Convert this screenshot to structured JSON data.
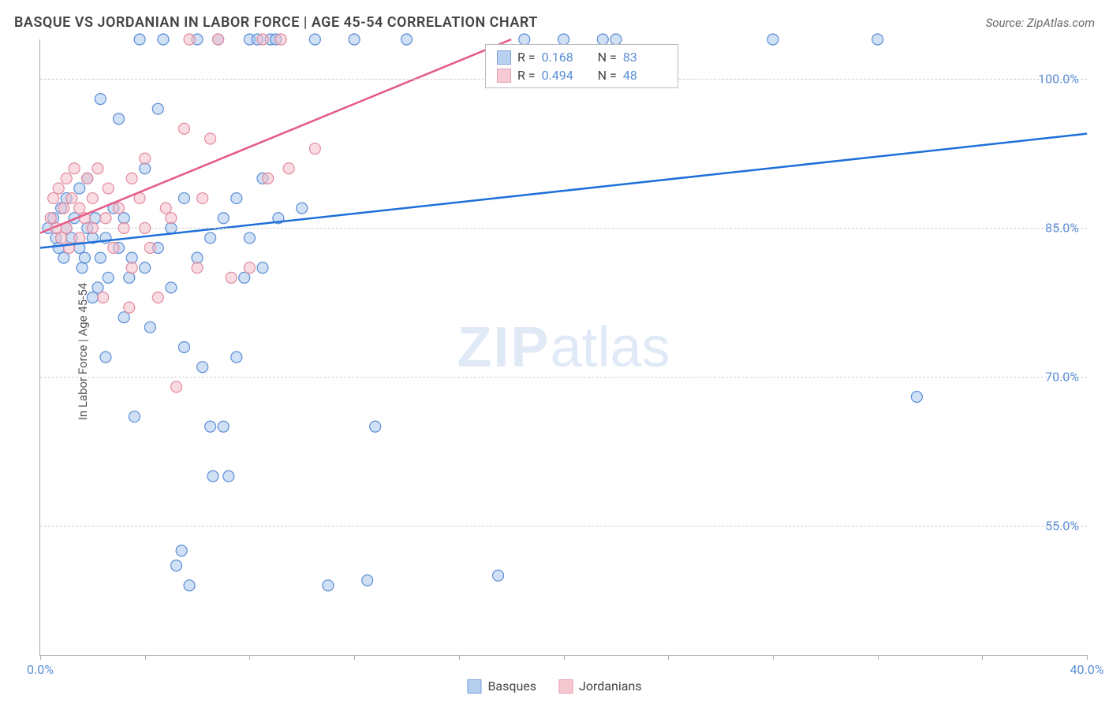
{
  "title": "BASQUE VS JORDANIAN IN LABOR FORCE | AGE 45-54 CORRELATION CHART",
  "source_label": "Source:",
  "source_name": "ZipAtlas.com",
  "ylabel": "In Labor Force | Age 45-54",
  "watermark_bold": "ZIP",
  "watermark_rest": "atlas",
  "chart": {
    "type": "scatter",
    "xlim": [
      0,
      40
    ],
    "ylim": [
      42,
      104
    ],
    "xticks": [
      0,
      4,
      8,
      12,
      16,
      20,
      24,
      28,
      32,
      36,
      40
    ],
    "xtick_labels": {
      "0": "0.0%",
      "40": "40.0%"
    },
    "yticks": [
      55,
      70,
      85,
      100
    ],
    "ytick_labels": {
      "55": "55.0%",
      "70": "70.0%",
      "85": "85.0%",
      "100": "100.0%"
    },
    "marker_radius": 7,
    "marker_stroke_width": 1.2,
    "trend_line_width": 2.5,
    "background": "#ffffff",
    "grid_color": "#d0d0d0",
    "axis_color": "#aaaaaa",
    "tick_label_color": "#5b8dd6",
    "series": [
      {
        "name": "Basques",
        "fill": "#a9c7ec",
        "stroke": "#5b8dd6",
        "fill_opacity": 0.55,
        "r": "0.168",
        "n": "83",
        "trend": {
          "x1": 0,
          "y1": 83.0,
          "x2": 40,
          "y2": 94.5,
          "color": "#1e6fd9"
        },
        "points": [
          [
            0.3,
            85
          ],
          [
            0.5,
            86
          ],
          [
            0.6,
            84
          ],
          [
            0.7,
            83
          ],
          [
            0.8,
            87
          ],
          [
            0.9,
            82
          ],
          [
            1.0,
            85
          ],
          [
            1.0,
            88
          ],
          [
            1.2,
            84
          ],
          [
            1.3,
            86
          ],
          [
            1.5,
            83
          ],
          [
            1.5,
            89
          ],
          [
            1.6,
            81
          ],
          [
            1.8,
            85
          ],
          [
            1.8,
            90
          ],
          [
            2.0,
            84
          ],
          [
            2.0,
            78
          ],
          [
            2.1,
            86
          ],
          [
            2.3,
            82
          ],
          [
            2.3,
            98
          ],
          [
            2.5,
            84
          ],
          [
            2.5,
            72
          ],
          [
            2.6,
            80
          ],
          [
            2.8,
            87
          ],
          [
            3.0,
            96
          ],
          [
            3.0,
            83
          ],
          [
            3.2,
            86
          ],
          [
            3.2,
            76
          ],
          [
            3.5,
            82
          ],
          [
            3.6,
            66
          ],
          [
            3.8,
            104
          ],
          [
            4.0,
            81
          ],
          [
            4.0,
            91
          ],
          [
            4.2,
            75
          ],
          [
            4.5,
            83
          ],
          [
            4.5,
            97
          ],
          [
            4.7,
            104
          ],
          [
            5.0,
            79
          ],
          [
            5.0,
            85
          ],
          [
            5.2,
            51
          ],
          [
            5.4,
            52.5
          ],
          [
            5.5,
            73
          ],
          [
            5.5,
            88
          ],
          [
            5.7,
            49
          ],
          [
            6.0,
            104
          ],
          [
            6.0,
            82
          ],
          [
            6.2,
            71
          ],
          [
            6.5,
            84
          ],
          [
            6.5,
            65
          ],
          [
            6.6,
            60
          ],
          [
            6.8,
            104
          ],
          [
            7.0,
            86
          ],
          [
            7.0,
            65
          ],
          [
            7.2,
            60
          ],
          [
            7.5,
            88
          ],
          [
            7.5,
            72
          ],
          [
            7.8,
            80
          ],
          [
            8.0,
            104
          ],
          [
            8.0,
            84
          ],
          [
            8.3,
            104
          ],
          [
            8.5,
            90
          ],
          [
            8.5,
            81
          ],
          [
            8.8,
            104
          ],
          [
            9.0,
            104
          ],
          [
            9.1,
            86
          ],
          [
            10.0,
            87
          ],
          [
            10.5,
            104
          ],
          [
            11.0,
            49
          ],
          [
            12.0,
            104
          ],
          [
            12.5,
            49.5
          ],
          [
            12.8,
            65
          ],
          [
            14.0,
            104
          ],
          [
            17.5,
            50
          ],
          [
            18.5,
            104
          ],
          [
            20.0,
            104
          ],
          [
            21.5,
            104
          ],
          [
            22.0,
            104
          ],
          [
            28.0,
            104
          ],
          [
            32.0,
            104
          ],
          [
            33.5,
            68
          ],
          [
            1.7,
            82
          ],
          [
            2.2,
            79
          ],
          [
            3.4,
            80
          ]
        ]
      },
      {
        "name": "Jordanians",
        "fill": "#f4bfca",
        "stroke": "#e38aa0",
        "fill_opacity": 0.55,
        "r": "0.494",
        "n": "48",
        "trend": {
          "x1": 0,
          "y1": 84.5,
          "x2": 18,
          "y2": 104,
          "color": "#e45a87"
        },
        "points": [
          [
            0.4,
            86
          ],
          [
            0.5,
            88
          ],
          [
            0.6,
            85
          ],
          [
            0.7,
            89
          ],
          [
            0.8,
            84
          ],
          [
            0.9,
            87
          ],
          [
            1.0,
            90
          ],
          [
            1.0,
            85
          ],
          [
            1.2,
            88
          ],
          [
            1.3,
            91
          ],
          [
            1.5,
            84
          ],
          [
            1.5,
            87
          ],
          [
            1.7,
            86
          ],
          [
            1.8,
            90
          ],
          [
            2.0,
            85
          ],
          [
            2.0,
            88
          ],
          [
            2.2,
            91
          ],
          [
            2.4,
            78
          ],
          [
            2.5,
            86
          ],
          [
            2.6,
            89
          ],
          [
            2.8,
            83
          ],
          [
            3.0,
            87
          ],
          [
            3.2,
            85
          ],
          [
            3.5,
            90
          ],
          [
            3.5,
            81
          ],
          [
            3.8,
            88
          ],
          [
            4.0,
            92
          ],
          [
            4.0,
            85
          ],
          [
            4.2,
            83
          ],
          [
            4.5,
            78
          ],
          [
            4.8,
            87
          ],
          [
            5.0,
            86
          ],
          [
            5.2,
            69
          ],
          [
            5.5,
            95
          ],
          [
            6.0,
            81
          ],
          [
            6.2,
            88
          ],
          [
            6.5,
            94
          ],
          [
            6.8,
            104
          ],
          [
            7.3,
            80
          ],
          [
            8.0,
            81
          ],
          [
            8.5,
            104
          ],
          [
            8.7,
            90
          ],
          [
            9.2,
            104
          ],
          [
            9.5,
            91
          ],
          [
            10.5,
            93
          ],
          [
            5.7,
            104
          ],
          [
            1.1,
            83
          ],
          [
            3.4,
            77
          ]
        ]
      }
    ],
    "legend_top": {
      "r_label": "R =",
      "n_label": "N ="
    },
    "legend_bottom": [
      {
        "label": "Basques",
        "fill": "#a9c7ec",
        "stroke": "#5b8dd6"
      },
      {
        "label": "Jordanians",
        "fill": "#f4bfca",
        "stroke": "#e38aa0"
      }
    ]
  }
}
